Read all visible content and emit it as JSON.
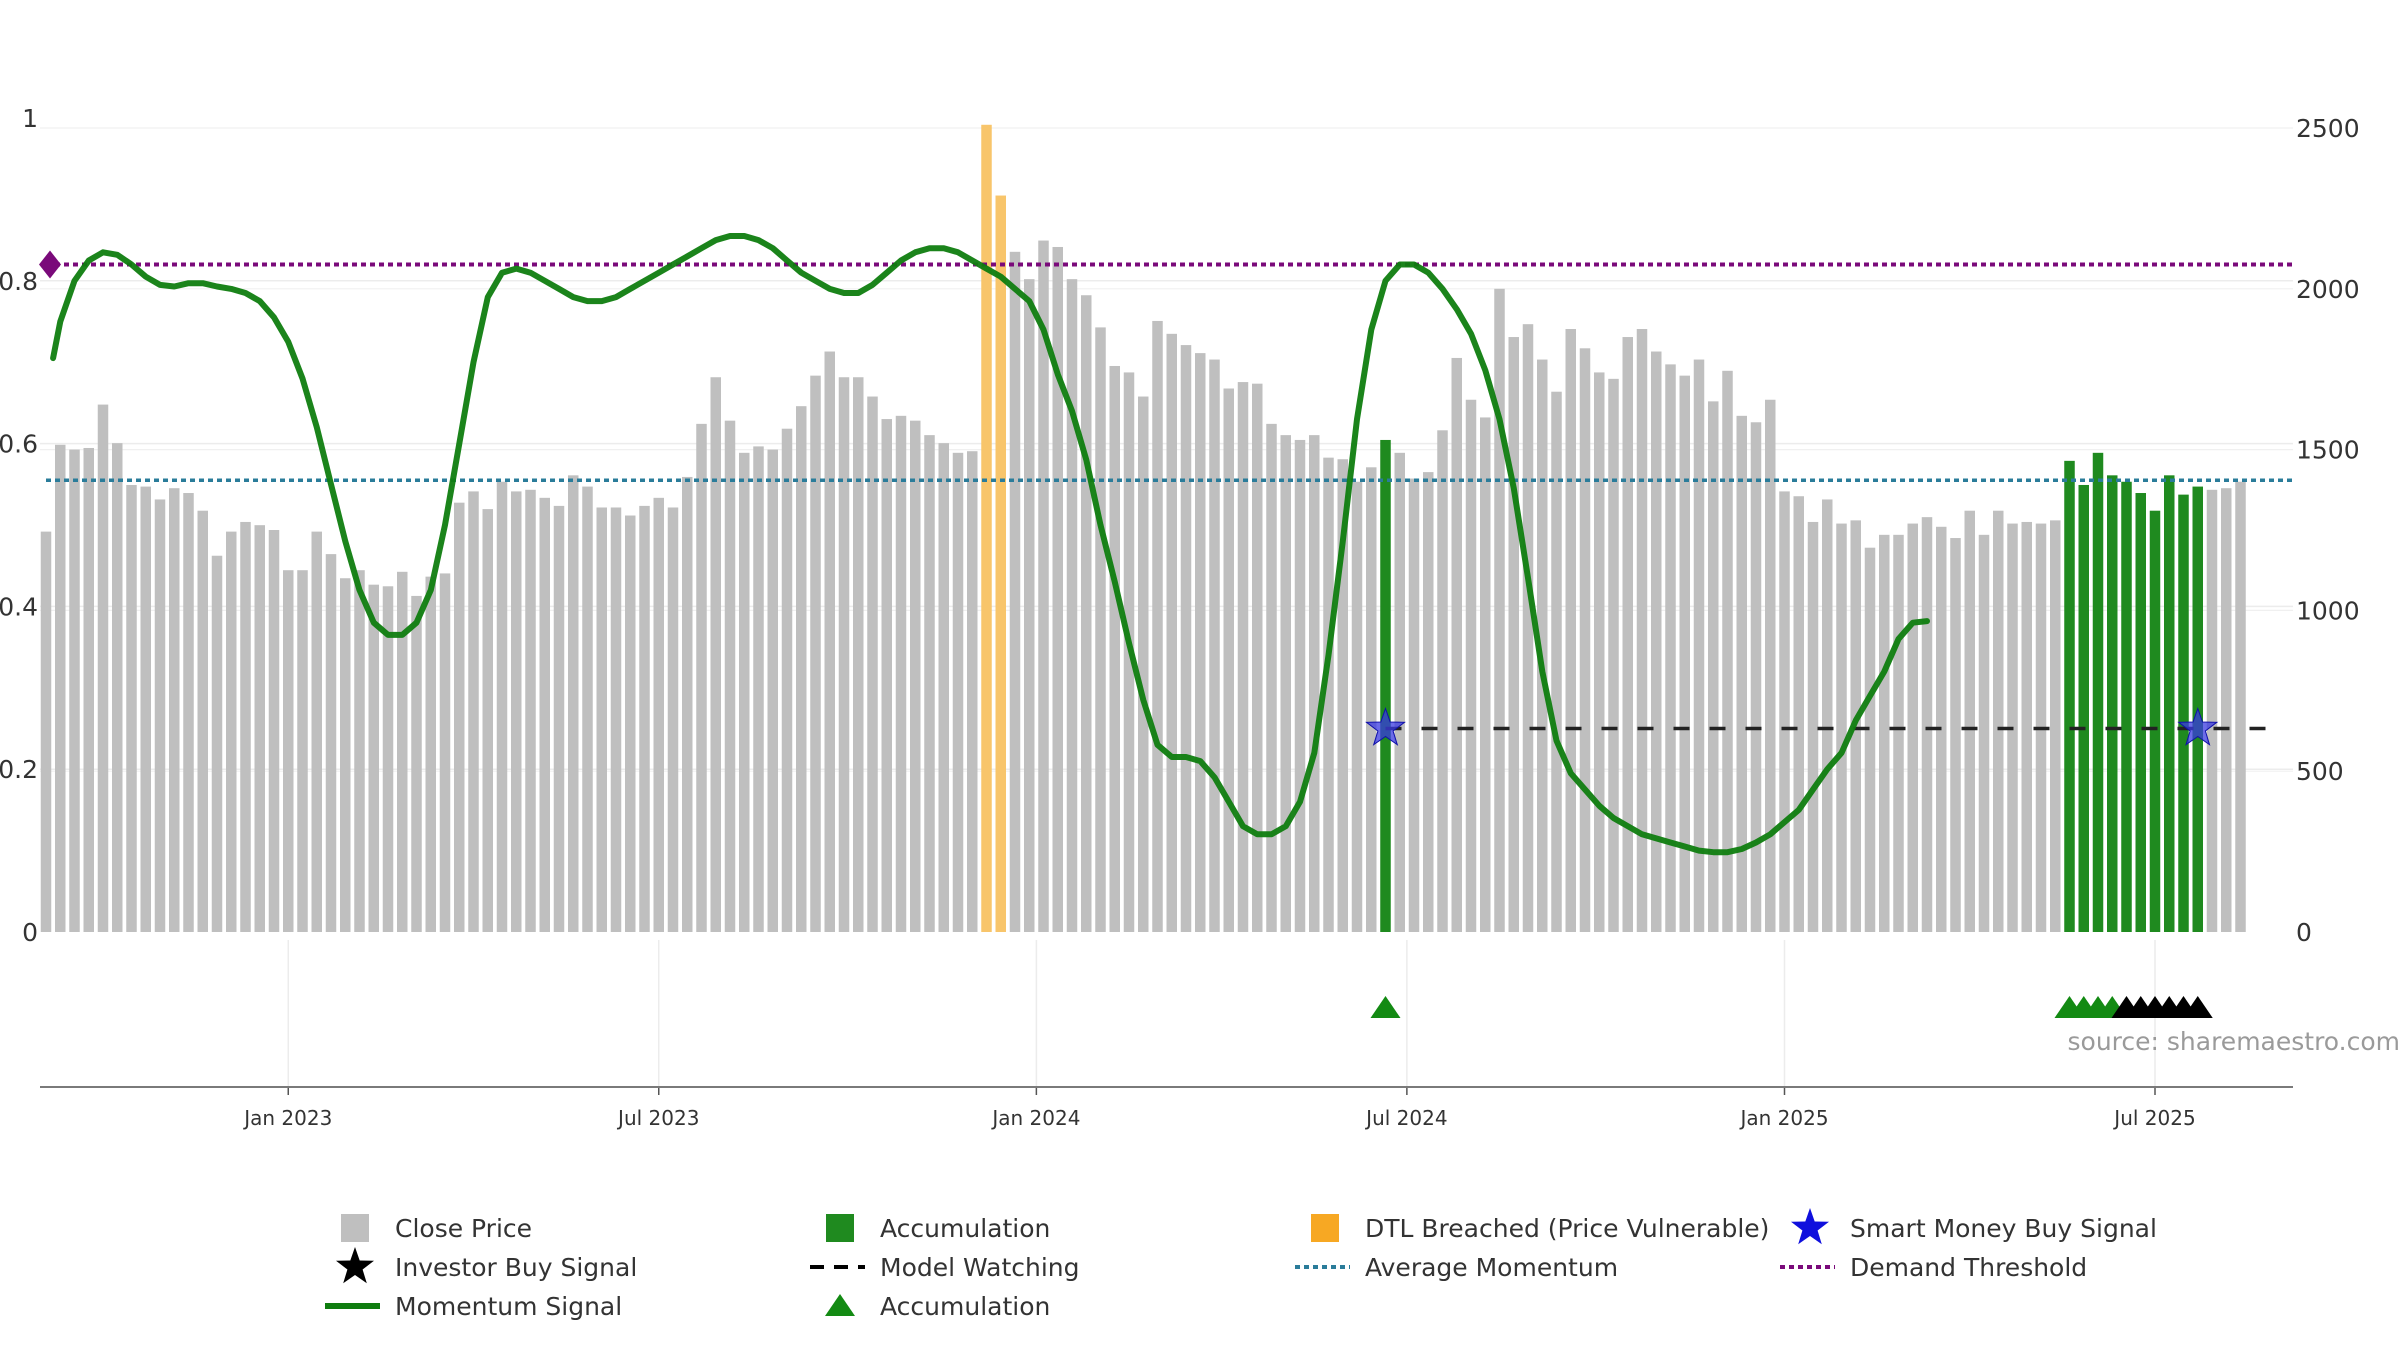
{
  "chart_data": {
    "type": "bar",
    "source_text": "source: sharemaestro.com",
    "left_axis": {
      "range": [
        0,
        1
      ],
      "ticks": [
        "0",
        "0.2",
        "0.4",
        "0.6",
        "0.8",
        "1"
      ]
    },
    "right_axis": {
      "range": [
        0,
        2500
      ],
      "ticks": [
        "0",
        "500",
        "1000",
        "1500",
        "2000",
        "2500"
      ]
    },
    "x_ticks": [
      "Jan 2023",
      "Jul 2023",
      "Jan 2024",
      "Jul 2024",
      "Jan 2025",
      "Jul 2025"
    ],
    "x_tick_weeks": [
      17,
      43,
      69.5,
      95.5,
      122,
      148
    ],
    "grid": true,
    "colors": {
      "close_price": "#bfbfbf",
      "accumulation": "#1f8a1f",
      "dtl_breached": "#f8c56b",
      "momentum": "#0f7d0f",
      "average_momentum": "#2a7c9a",
      "demand_threshold": "#7a0a7a",
      "smart_money": "#1010dd",
      "investor_signal": "#000000"
    },
    "close_price": [
      1245,
      1515,
      1500,
      1505,
      1640,
      1520,
      1390,
      1385,
      1345,
      1380,
      1365,
      1310,
      1170,
      1245,
      1275,
      1265,
      1250,
      1125,
      1125,
      1245,
      1175,
      1100,
      1125,
      1080,
      1075,
      1120,
      1045,
      1105,
      1115,
      1335,
      1370,
      1315,
      1400,
      1370,
      1375,
      1350,
      1325,
      1420,
      1385,
      1320,
      1320,
      1295,
      1325,
      1350,
      1320,
      1415,
      1580,
      1725,
      1590,
      1490,
      1510,
      1500,
      1565,
      1635,
      1730,
      1805,
      1725,
      1725,
      1665,
      1595,
      1605,
      1590,
      1545,
      1520,
      1490,
      1495,
      2510,
      2290,
      2115,
      2030,
      2150,
      2130,
      2030,
      1980,
      1880,
      1760,
      1740,
      1665,
      1900,
      1860,
      1825,
      1800,
      1780,
      1690,
      1710,
      1705,
      1580,
      1545,
      1530,
      1545,
      1475,
      1470,
      1400,
      1445,
      1530,
      1490,
      1410,
      1430,
      1560,
      1785,
      1655,
      1600,
      2000,
      1850,
      1890,
      1780,
      1680,
      1875,
      1815,
      1740,
      1720,
      1850,
      1875,
      1805,
      1765,
      1730,
      1780,
      1650,
      1745,
      1605,
      1585,
      1655,
      1370,
      1355,
      1275,
      1345,
      1270,
      1280,
      1195,
      1235,
      1235,
      1270,
      1290,
      1260,
      1225,
      1310,
      1235,
      1310,
      1270,
      1275,
      1270,
      1280,
      1465,
      1390,
      1490,
      1420,
      1400,
      1365,
      1310,
      1420,
      1360,
      1385,
      1375,
      1380,
      1400
    ],
    "accumulation_weeks": [
      94,
      142,
      143,
      144,
      145,
      146,
      147,
      148,
      149,
      150,
      151
    ],
    "dtl_breached_weeks": [
      66,
      67
    ],
    "momentum_signal": [
      [
        0.5,
        0.705
      ],
      [
        1,
        0.75
      ],
      [
        2,
        0.8
      ],
      [
        3,
        0.825
      ],
      [
        4,
        0.835
      ],
      [
        5,
        0.832
      ],
      [
        6,
        0.82
      ],
      [
        7,
        0.805
      ],
      [
        8,
        0.795
      ],
      [
        9,
        0.793
      ],
      [
        10,
        0.797
      ],
      [
        11,
        0.797
      ],
      [
        12,
        0.793
      ],
      [
        13,
        0.79
      ],
      [
        14,
        0.785
      ],
      [
        15,
        0.775
      ],
      [
        16,
        0.755
      ],
      [
        17,
        0.725
      ],
      [
        18,
        0.68
      ],
      [
        19,
        0.62
      ],
      [
        20,
        0.55
      ],
      [
        21,
        0.48
      ],
      [
        22,
        0.42
      ],
      [
        23,
        0.38
      ],
      [
        24,
        0.365
      ],
      [
        25,
        0.365
      ],
      [
        26,
        0.38
      ],
      [
        27,
        0.42
      ],
      [
        28,
        0.5
      ],
      [
        29,
        0.6
      ],
      [
        30,
        0.7
      ],
      [
        31,
        0.78
      ],
      [
        32,
        0.81
      ],
      [
        33,
        0.815
      ],
      [
        34,
        0.81
      ],
      [
        35,
        0.8
      ],
      [
        36,
        0.79
      ],
      [
        37,
        0.78
      ],
      [
        38,
        0.775
      ],
      [
        39,
        0.775
      ],
      [
        40,
        0.78
      ],
      [
        41,
        0.79
      ],
      [
        42,
        0.8
      ],
      [
        43,
        0.81
      ],
      [
        44,
        0.82
      ],
      [
        45,
        0.83
      ],
      [
        46,
        0.84
      ],
      [
        47,
        0.85
      ],
      [
        48,
        0.855
      ],
      [
        49,
        0.855
      ],
      [
        50,
        0.85
      ],
      [
        51,
        0.84
      ],
      [
        52,
        0.825
      ],
      [
        53,
        0.81
      ],
      [
        54,
        0.8
      ],
      [
        55,
        0.79
      ],
      [
        56,
        0.785
      ],
      [
        57,
        0.785
      ],
      [
        58,
        0.795
      ],
      [
        59,
        0.81
      ],
      [
        60,
        0.825
      ],
      [
        61,
        0.835
      ],
      [
        62,
        0.84
      ],
      [
        63,
        0.84
      ],
      [
        64,
        0.835
      ],
      [
        65,
        0.825
      ],
      [
        66,
        0.815
      ],
      [
        67,
        0.805
      ],
      [
        68,
        0.79
      ],
      [
        69,
        0.775
      ],
      [
        70,
        0.74
      ],
      [
        71,
        0.685
      ],
      [
        72,
        0.64
      ],
      [
        73,
        0.58
      ],
      [
        74,
        0.5
      ],
      [
        75,
        0.43
      ],
      [
        76,
        0.355
      ],
      [
        77,
        0.285
      ],
      [
        78,
        0.23
      ],
      [
        79,
        0.215
      ],
      [
        80,
        0.215
      ],
      [
        81,
        0.21
      ],
      [
        82,
        0.19
      ],
      [
        83,
        0.16
      ],
      [
        84,
        0.13
      ],
      [
        85,
        0.12
      ],
      [
        86,
        0.12
      ],
      [
        87,
        0.13
      ],
      [
        88,
        0.16
      ],
      [
        89,
        0.22
      ],
      [
        90,
        0.34
      ],
      [
        91,
        0.48
      ],
      [
        92,
        0.63
      ],
      [
        93,
        0.74
      ],
      [
        94,
        0.8
      ],
      [
        95,
        0.82
      ],
      [
        96,
        0.82
      ],
      [
        97,
        0.81
      ],
      [
        98,
        0.79
      ],
      [
        99,
        0.765
      ],
      [
        100,
        0.735
      ],
      [
        101,
        0.69
      ],
      [
        102,
        0.63
      ],
      [
        103,
        0.545
      ],
      [
        104,
        0.435
      ],
      [
        105,
        0.32
      ],
      [
        106,
        0.235
      ],
      [
        107,
        0.195
      ],
      [
        108,
        0.175
      ],
      [
        109,
        0.155
      ],
      [
        110,
        0.14
      ],
      [
        111,
        0.13
      ],
      [
        112,
        0.12
      ],
      [
        113,
        0.115
      ],
      [
        114,
        0.11
      ],
      [
        115,
        0.105
      ],
      [
        116,
        0.1
      ],
      [
        117,
        0.098
      ],
      [
        118,
        0.098
      ],
      [
        119,
        0.102
      ],
      [
        120,
        0.11
      ],
      [
        121,
        0.12
      ],
      [
        122,
        0.135
      ],
      [
        123,
        0.15
      ],
      [
        124,
        0.175
      ],
      [
        125,
        0.2
      ],
      [
        126,
        0.22
      ],
      [
        127,
        0.26
      ],
      [
        128,
        0.29
      ],
      [
        129,
        0.32
      ],
      [
        130,
        0.36
      ],
      [
        131,
        0.38
      ],
      [
        132,
        0.382
      ]
    ],
    "average_momentum": 0.555,
    "demand_threshold": 0.82,
    "demand_threshold_marker": 0.82,
    "model_watching": {
      "y": 0.25,
      "from_week": 94,
      "to_week": 157
    },
    "smart_money_buy_signal": [
      [
        94,
        0.25
      ],
      [
        151,
        0.25
      ]
    ],
    "accumulation_triangles": [
      94,
      142,
      143,
      144,
      145
    ],
    "investor_buy_signal": [
      146,
      147,
      148,
      149,
      150,
      151
    ],
    "legend": [
      {
        "label": "Close Price",
        "marker": "square-gray"
      },
      {
        "label": "Accumulation",
        "marker": "square-green"
      },
      {
        "label": "DTL Breached (Price Vulnerable)",
        "marker": "square-orange"
      },
      {
        "label": "Smart Money Buy Signal",
        "marker": "star-blue"
      },
      {
        "label": "Investor Buy Signal",
        "marker": "star-black"
      },
      {
        "label": "Model Watching",
        "marker": "dash-black"
      },
      {
        "label": "Average Momentum",
        "marker": "dot-teal"
      },
      {
        "label": "Demand Threshold",
        "marker": "dot-purple"
      },
      {
        "label": "Momentum Signal",
        "marker": "line-green"
      },
      {
        "label": "Accumulation",
        "marker": "triangle-green"
      }
    ]
  }
}
